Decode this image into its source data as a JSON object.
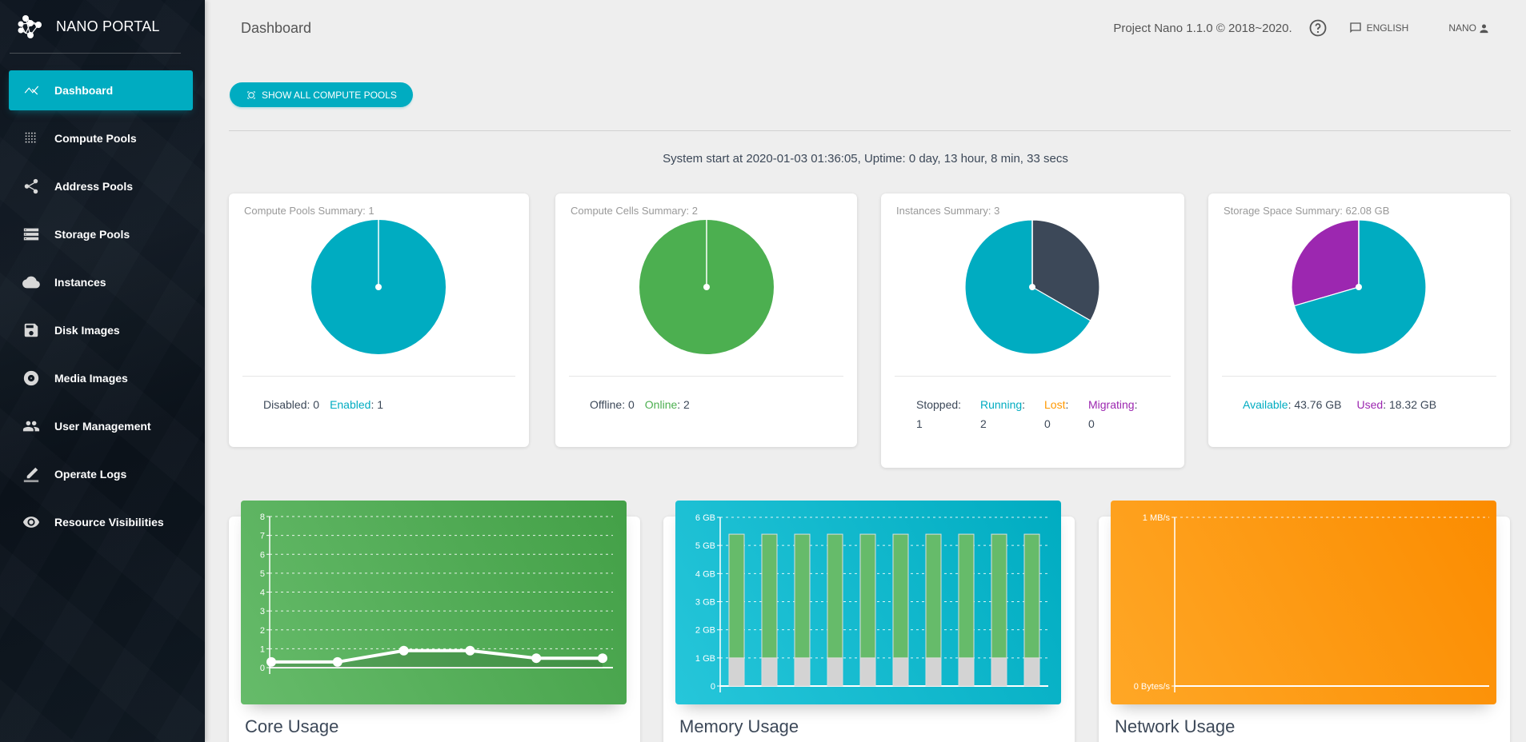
{
  "sidebar": {
    "brand": "NANO PORTAL",
    "items": [
      {
        "label": "Dashboard",
        "icon": "trending-icon",
        "active": true
      },
      {
        "label": "Compute Pools",
        "icon": "grid-dots-icon"
      },
      {
        "label": "Address Pools",
        "icon": "share-icon"
      },
      {
        "label": "Storage Pools",
        "icon": "storage-icon"
      },
      {
        "label": "Instances",
        "icon": "cloud-icon"
      },
      {
        "label": "Disk Images",
        "icon": "save-icon"
      },
      {
        "label": "Media Images",
        "icon": "album-icon"
      },
      {
        "label": "User Management",
        "icon": "people-icon"
      },
      {
        "label": "Operate Logs",
        "icon": "edit-icon"
      },
      {
        "label": "Resource Visibilities",
        "icon": "eye-icon"
      }
    ]
  },
  "header": {
    "title": "Dashboard",
    "version": "Project Nano 1.1.0 © 2018~2020.",
    "language": "ENGLISH",
    "user": "NANO"
  },
  "toolbar": {
    "show_pools_label": "SHOW ALL COMPUTE POOLS"
  },
  "uptime": "System start at 2020-01-03 01:36:05, Uptime: 0 day, 13 hour, 8 min, 33 secs",
  "colors": {
    "primary": "#00acc1",
    "success": "#4caf50",
    "dark": "#3c4858",
    "warning": "#ff9800",
    "purple": "#9c27b0",
    "memory_used": "#66bb6a",
    "memory_base": "#d3d3d3"
  },
  "summaries": {
    "pools": {
      "title": "Compute Pools Summary: 1",
      "legend": [
        {
          "label": "Disabled",
          "value": "0",
          "color": "#3c4858"
        },
        {
          "label": "Enabled",
          "value": "1",
          "color": "#00acc1"
        }
      ]
    },
    "cells": {
      "title": "Compute Cells Summary: 2",
      "legend": [
        {
          "label": "Offline",
          "value": "0",
          "color": "#3c4858"
        },
        {
          "label": "Online",
          "value": "2",
          "color": "#4caf50"
        }
      ]
    },
    "instances": {
      "title": "Instances Summary: 3",
      "legend": [
        {
          "label": "Stopped",
          "value": "1",
          "color": "#3c4858"
        },
        {
          "label": "Running",
          "value": "2",
          "color": "#00acc1"
        },
        {
          "label": "Lost",
          "value": "0",
          "color": "#ff9800"
        },
        {
          "label": "Migrating",
          "value": "0",
          "color": "#9c27b0"
        }
      ]
    },
    "storage": {
      "title": "Storage Space Summary: 62.08 GB",
      "legend": [
        {
          "label": "Available",
          "value": "43.76 GB",
          "color": "#00acc1"
        },
        {
          "label": "Used",
          "value": "18.32 GB",
          "color": "#9c27b0"
        }
      ]
    }
  },
  "chart_data": [
    {
      "id": "pools-pie",
      "type": "pie",
      "title": "Compute Pools Summary: 1",
      "labels": [
        "Disabled",
        "Enabled"
      ],
      "values": [
        0,
        1
      ],
      "colors": [
        "#3c4858",
        "#00acc1"
      ]
    },
    {
      "id": "cells-pie",
      "type": "pie",
      "title": "Compute Cells Summary: 2",
      "labels": [
        "Offline",
        "Online"
      ],
      "values": [
        0,
        2
      ],
      "colors": [
        "#3c4858",
        "#4caf50"
      ]
    },
    {
      "id": "instances-pie",
      "type": "pie",
      "title": "Instances Summary: 3",
      "labels": [
        "Stopped",
        "Running",
        "Lost",
        "Migrating"
      ],
      "values": [
        1,
        2,
        0,
        0
      ],
      "colors": [
        "#3c4858",
        "#00acc1",
        "#ff9800",
        "#9c27b0"
      ]
    },
    {
      "id": "storage-pie",
      "type": "pie",
      "title": "Storage Space Summary: 62.08 GB",
      "labels": [
        "Available",
        "Used"
      ],
      "values": [
        43.76,
        18.32
      ],
      "colors": [
        "#00acc1",
        "#9c27b0"
      ],
      "start_with": "Used"
    },
    {
      "id": "core-usage",
      "type": "line",
      "title": "Core Usage",
      "x": [
        1,
        2,
        3,
        4,
        5,
        6
      ],
      "values": [
        0.3,
        0.3,
        0.9,
        0.9,
        0.5,
        0.5
      ],
      "ylim": [
        0,
        8
      ],
      "yticks": [
        "0",
        "1",
        "2",
        "3",
        "4",
        "5",
        "6",
        "7",
        "8"
      ],
      "grid": true
    },
    {
      "id": "memory-usage",
      "type": "bar",
      "title": "Memory Usage",
      "stacked": true,
      "categories": [
        "1",
        "2",
        "3",
        "4",
        "5",
        "6",
        "7",
        "8",
        "9",
        "10"
      ],
      "series": [
        {
          "name": "base",
          "values": [
            1,
            1,
            1,
            1,
            1,
            1,
            1,
            1,
            1,
            1
          ]
        },
        {
          "name": "used",
          "values": [
            4.4,
            4.4,
            4.4,
            4.4,
            4.4,
            4.4,
            4.4,
            4.4,
            4.4,
            4.4
          ]
        }
      ],
      "ylim": [
        0,
        6
      ],
      "yticks": [
        "0",
        "1 GB",
        "2 GB",
        "3 GB",
        "4 GB",
        "5 GB",
        "6 GB"
      ],
      "grid": true
    },
    {
      "id": "network-usage",
      "type": "line",
      "title": "Network Usage",
      "values": [],
      "ylim": [
        0,
        1
      ],
      "yticks": [
        "0 Bytes/s",
        "1 MB/s"
      ],
      "grid": true
    }
  ]
}
